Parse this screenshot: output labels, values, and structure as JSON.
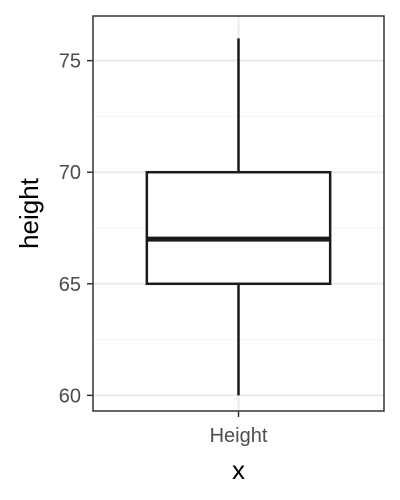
{
  "chart_data": {
    "type": "boxplot",
    "xlabel": "x",
    "ylabel": "height",
    "categories": [
      "Height"
    ],
    "ylim": [
      59.3,
      77.0
    ],
    "y_ticks": [
      60,
      65,
      70,
      75
    ],
    "y_minor_ticks": [
      62.5,
      67.5,
      72.5
    ],
    "boxes": [
      {
        "category": "Height",
        "whisker_low": 60,
        "q1": 65,
        "median": 67,
        "q3": 70,
        "whisker_high": 76
      }
    ],
    "grid": true,
    "theme": "bw",
    "colors": {
      "box_stroke": "#1a1a1a",
      "panel_border": "#333333",
      "grid_major": "#ebebeb",
      "grid_minor": "#f2f2f2",
      "tick_text": "#4d4d4d",
      "title_text": "#000000"
    }
  }
}
